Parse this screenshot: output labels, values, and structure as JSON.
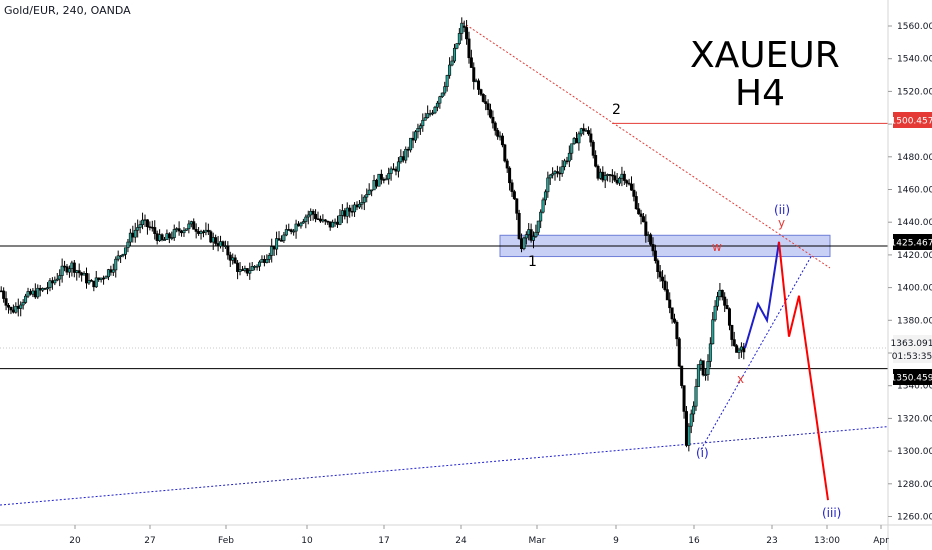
{
  "header": {
    "symbol": "Gold/EUR, 240, OANDA"
  },
  "watermark": {
    "line1": "XAUEUR",
    "line2": "H4"
  },
  "price_labels": {
    "resistance": "1500.457",
    "zone": "1425.467",
    "current": "1363.091",
    "countdown": "01:53:35",
    "support": "1350.459"
  },
  "wave_labels": {
    "one": "1",
    "two": "2",
    "w": "w",
    "x": "x",
    "y": "y",
    "wave_i": "(i)",
    "wave_ii": "(ii)",
    "wave_iii": "(iii)"
  },
  "colors": {
    "up": "#26a69a",
    "down": "#000000",
    "resistance": "#e53935",
    "forecast_red": "#ff0000",
    "forecast_blue": "#1e1ecc",
    "zone_fill": "#aab8f0",
    "label_bg": "#000000",
    "resistance_bg": "#e53935"
  },
  "chart_data": {
    "type": "candlestick",
    "title": "",
    "x_ticks": [
      "20",
      "27",
      "Feb",
      "10",
      "17",
      "24",
      "Mar",
      "9",
      "16",
      "23",
      "13:00",
      "Apr"
    ],
    "y_ticks": [
      1560,
      1540,
      1520,
      1500,
      1480,
      1460,
      1440,
      1420,
      1400,
      1380,
      1360,
      1340,
      1320,
      1300,
      1280,
      1260
    ],
    "ylim": [
      1252,
      1568
    ],
    "price_path": [
      [
        1398,
        1385,
        1392,
        1396,
        1398,
        1402,
        1410,
        1414,
        1408,
        1402,
        1406,
        1412,
        1421,
        1432,
        1440,
        1436,
        1428,
        1432,
        1436,
        1438,
        1435,
        1430,
        1426,
        1418,
        1408,
        1412,
        1416,
        1424,
        1430,
        1436,
        1442,
        1446,
        1440,
        1438,
        1444,
        1448,
        1455,
        1462,
        1468,
        1470,
        1478,
        1490,
        1500,
        1508,
        1520,
        1538,
        1560
      ],
      [
        1560,
        1535,
        1522,
        1512,
        1508,
        1498,
        1486,
        1470,
        1450,
        1423,
        1435,
        1428,
        1445,
        1465,
        1470,
        1472,
        1478,
        1486,
        1494,
        1498,
        1488,
        1470,
        1465,
        1468,
        1466,
        1470,
        1462,
        1452,
        1440,
        1430,
        1420,
        1404,
        1392,
        1380,
        1350,
        1305,
        1326,
        1355,
        1345,
        1375,
        1400,
        1392,
        1372,
        1360,
        1363
      ]
    ],
    "horizontal_levels": [
      {
        "value": 1500.457,
        "style": "red"
      },
      {
        "value": 1425.467,
        "style": "black"
      },
      {
        "value": 1350.459,
        "style": "black"
      }
    ],
    "zone": {
      "from": 1419,
      "to": 1432
    },
    "trendlines": [
      {
        "from": [
          "24",
          1562
        ],
        "to": [
          "forecast",
          1412
        ],
        "style": "red-dotted"
      },
      {
        "from": [
          "start",
          1267
        ],
        "to": [
          "end",
          1315
        ],
        "style": "blue-dotted"
      },
      {
        "from": [
          "16",
          1301
        ],
        "to": [
          "forecast",
          1420
        ],
        "style": "blue-dotted"
      }
    ],
    "forecast_blue": [
      1363,
      1390,
      1380,
      1428
    ],
    "forecast_red": [
      1428,
      1370,
      1395,
      1270
    ]
  }
}
